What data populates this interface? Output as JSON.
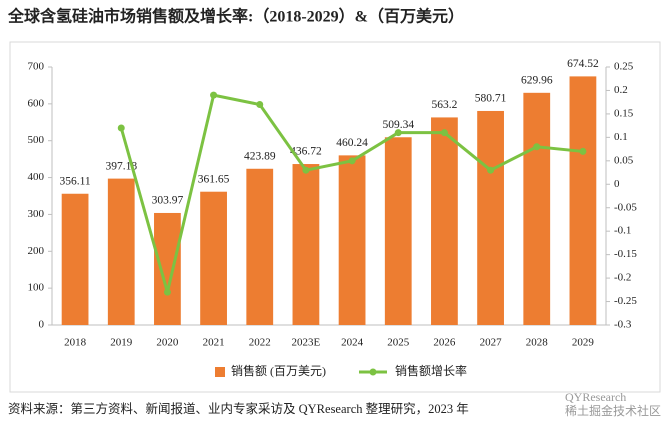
{
  "chart_data": {
    "type": "bar-line",
    "title": "全球含氢硅油市场销售额及增长率:（2018-2029）&（百万美元）",
    "categories": [
      "2018",
      "2019",
      "2020",
      "2021",
      "2022",
      "2023E",
      "2024",
      "2025",
      "2026",
      "2027",
      "2028",
      "2029"
    ],
    "series": [
      {
        "name": "销售额 (百万美元)",
        "type": "bar",
        "color": "#ed7d31",
        "values": [
          356.11,
          397.18,
          303.97,
          361.65,
          423.89,
          436.72,
          460.24,
          509.34,
          563.2,
          580.71,
          629.96,
          674.52
        ]
      },
      {
        "name": "销售额增长率",
        "type": "line",
        "axis": "y2",
        "color": "#7cc242",
        "values": [
          null,
          0.12,
          -0.23,
          0.19,
          0.17,
          0.03,
          0.05,
          0.11,
          0.11,
          0.03,
          0.08,
          0.07
        ]
      }
    ],
    "ylim": [
      0,
      700
    ],
    "yticks": [
      0,
      100,
      200,
      300,
      400,
      500,
      600,
      700
    ],
    "y2lim": [
      -0.3,
      0.25
    ],
    "y2ticks": [
      -0.3,
      -0.25,
      -0.2,
      -0.15,
      -0.1,
      -0.05,
      0,
      0.05,
      0.1,
      0.15,
      0.2,
      0.25
    ],
    "grid": false,
    "legend": "bottom",
    "source": "资料来源：第三方资料、新闻报道、业内专家采访及 QYResearch 整理研究，2023 年",
    "watermark": [
      "QYResearch",
      "稀土掘金技术社区"
    ]
  }
}
